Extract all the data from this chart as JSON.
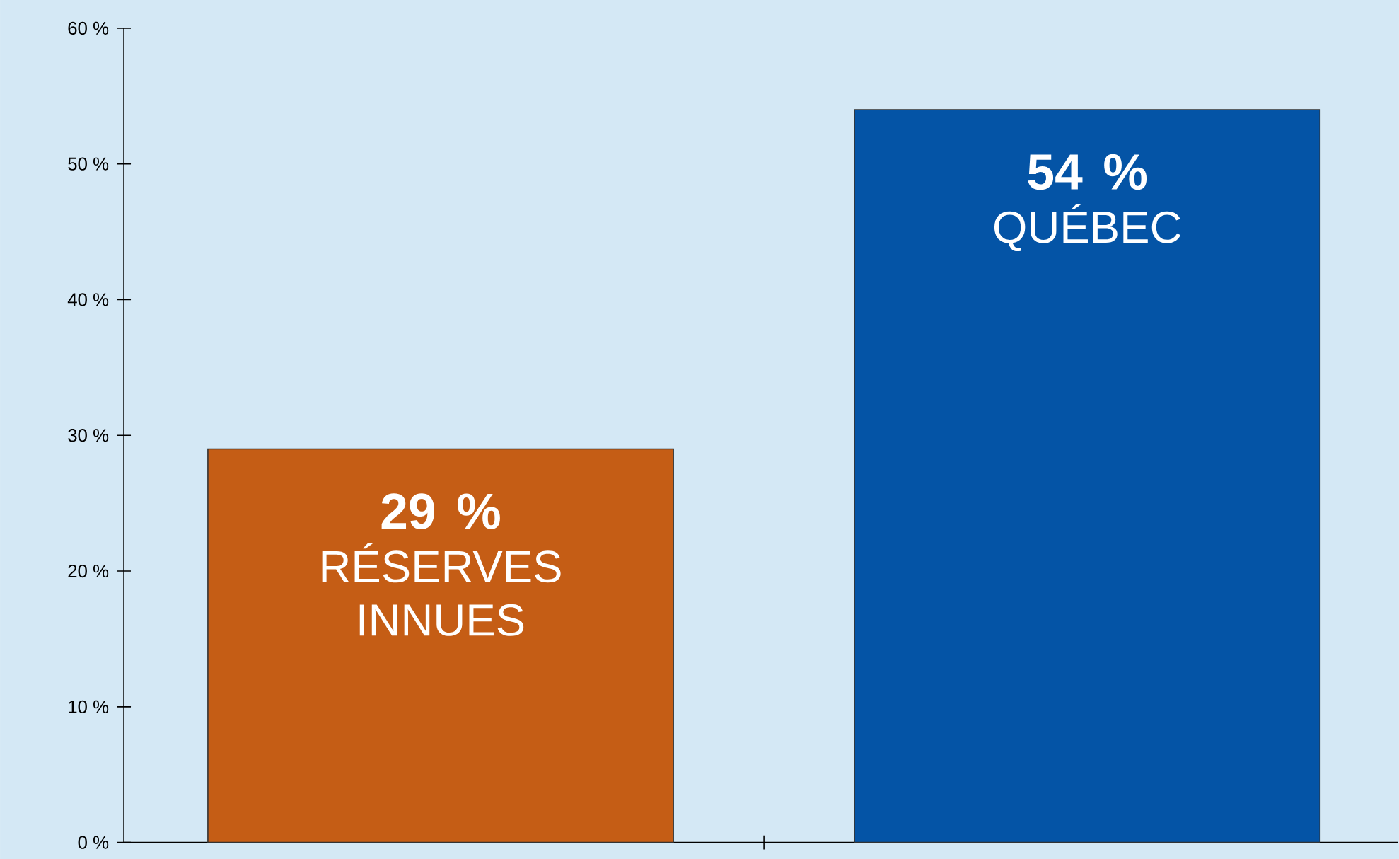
{
  "chart_data": {
    "type": "bar",
    "categories": [
      "RÉSERVES INNUES",
      "QUÉBEC"
    ],
    "values": [
      29,
      54
    ],
    "colors": [
      "#c55d15",
      "#0454a6"
    ],
    "value_labels": [
      "29 %",
      "54 %"
    ],
    "ylim": [
      0,
      60
    ],
    "yticks": [
      {
        "value": 0,
        "label": "0 %"
      },
      {
        "value": 10,
        "label": "10 %"
      },
      {
        "value": 20,
        "label": "20 %"
      },
      {
        "value": 30,
        "label": "30 %"
      },
      {
        "value": 40,
        "label": "40 %"
      },
      {
        "value": 50,
        "label": "50 %"
      },
      {
        "value": 60,
        "label": "60 %"
      }
    ]
  }
}
